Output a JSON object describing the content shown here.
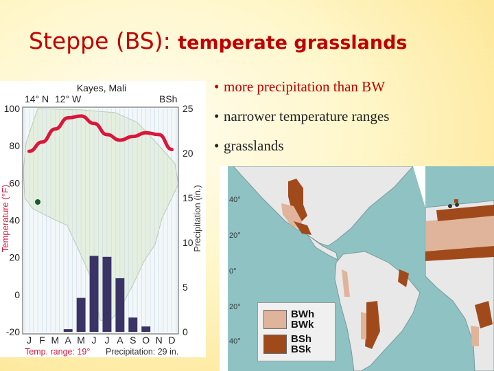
{
  "slide": {
    "title_main": "Steppe (BS):",
    "title_sub": "temperate grasslands",
    "bullets": [
      "more precipitation than BW",
      "narrower temperature ranges",
      "grasslands"
    ],
    "colors": {
      "title": "#c00000",
      "accent_bullet": "#c00000"
    }
  },
  "climograph": {
    "station": "Kayes, Mali",
    "lat": "14° N",
    "lon": "12° W",
    "climate_code": "BSh",
    "temp_range": "Temp. range: 19°",
    "precip_total": "Precipitation: 29 in."
  },
  "chart_data": {
    "type": "bar",
    "categories": [
      "J",
      "F",
      "M",
      "A",
      "M",
      "J",
      "J",
      "A",
      "S",
      "O",
      "N",
      "D"
    ],
    "series": [
      {
        "values": [
          0,
          0,
          0,
          0.3,
          3.8,
          8.5,
          8.4,
          6.0,
          1.6,
          0.6,
          0,
          0
        ],
        "color": "#3a3366"
      },
      {
        "values": [
          77,
          82,
          89,
          95,
          96,
          92,
          86,
          83,
          85,
          87,
          86,
          78
        ],
        "color": "#d9173b",
        "type": "line"
      }
    ],
    "ylabel": "Temperature (°F)",
    "y2label": "Precipitation (in.)",
    "ylim": [
      -20,
      100
    ],
    "y2lim": [
      0,
      25
    ],
    "yticks": [
      100,
      80,
      60,
      40,
      20,
      0,
      -20
    ],
    "y2ticks": [
      25,
      20,
      15,
      10,
      5,
      0
    ]
  },
  "map": {
    "lat_labels": [
      "40°",
      "20°",
      "0°",
      "20°",
      "40°"
    ],
    "legend": [
      {
        "label": "BWh",
        "color": "#e0b49a"
      },
      {
        "label": "BWk",
        "color": "#e0b49a"
      },
      {
        "label": "BSh",
        "color": "#a04a1c"
      },
      {
        "label": "BSk",
        "color": "#a04a1c"
      }
    ]
  }
}
